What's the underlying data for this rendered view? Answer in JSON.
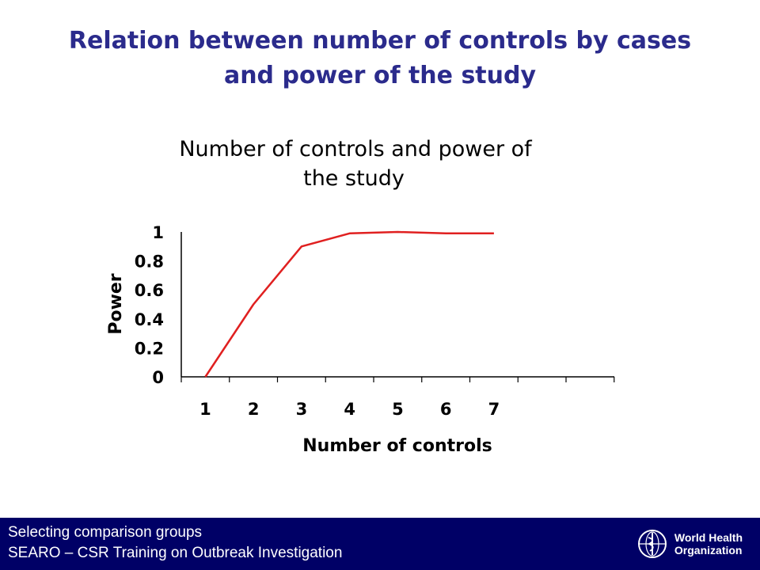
{
  "slide": {
    "title_line1": "Relation between number of controls by cases",
    "title_line2": "and power of the study"
  },
  "chart_data": {
    "type": "line",
    "title_line1": "Number of controls and power of",
    "title_line2": "the study",
    "xlabel": "Number of controls",
    "ylabel": "Power",
    "categories": [
      "1",
      "2",
      "3",
      "4",
      "5",
      "6",
      "7"
    ],
    "yticks": [
      "1",
      "0.8",
      "0.6",
      "0.4",
      "0.2",
      "0"
    ],
    "ylim": [
      0,
      1
    ],
    "series": [
      {
        "values": [
          0,
          0.5,
          0.9,
          0.99,
          1.0,
          0.99,
          0.99
        ],
        "color": "#e02020"
      }
    ],
    "grid": false
  },
  "footer": {
    "line1": "Selecting comparison groups",
    "line2": "SEARO – CSR Training on Outbreak Investigation",
    "logo_text_line1": "World Health",
    "logo_text_line2": "Organization",
    "logo_icon": "who-emblem-icon"
  },
  "colors": {
    "title": "#2b2b8c",
    "footer_bg": "#000066",
    "line": "#e02020"
  }
}
